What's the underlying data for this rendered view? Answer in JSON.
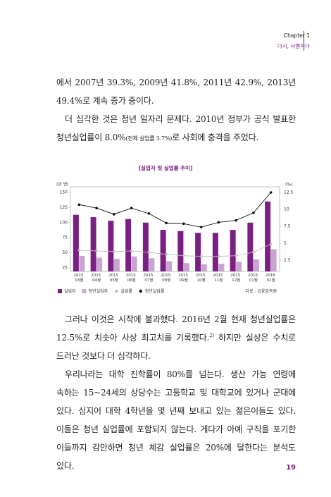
{
  "header": {
    "chapter": "Chapter 1",
    "title": "다시, 사명이다"
  },
  "paragraphs": [
    [
      "에서 2007년 39.3%, 2009년 41.8%, 2011년 42.9%, 2013년 49.4%로 계속 증가 중이다."
    ],
    [
      "더 심각한 것은 청년 일자리 문제다. 2010년 정부가 공식 발표한 청년실업률이 8.0%",
      "(전체 실업률 3.7%)",
      "로 사회에 충격을 주었다."
    ],
    [
      "그러나 이것은 시작에 불과했다. 2016년 2월 현재 청년실업률은 12.5%로 치솟아 사상 최고치를 기록했다.",
      "2)",
      " 하지만 실상은 수치로 드러난 것보다 더 심각하다."
    ],
    [
      "우리나라는 대학 진학률이 80%를 넘는다. 생산 가능 연령에 속하는 15~24세의 상당수는 고등학교 및 대학교에 있거나 군대에 있다. 심지어 대학 4학년을 몇 년째 보내고 있는 젊은이들도 있다. 이들은 청년 실업률에 포함되지 않는다. 게다가 아예 구직을 포기한 이들까지 감안하면 청년 체감 실업률은 20%에 달한다는 분석도 있다."
    ]
  ],
  "chart_data": {
    "type": "bar-line",
    "title": "[실업자 및 실업률 추이]",
    "y_label": "(만 명)",
    "y2_label": "(%)",
    "source": "자료 : 금융감독원",
    "categories": [
      "2015 03월",
      "2015 04월",
      "2015 05월",
      "2015 06월",
      "2015 07월",
      "2015 08월",
      "2015 09월",
      "2015 10월",
      "2015 11월",
      "2015 12월",
      "2016 01월",
      "2016 02월"
    ],
    "ylim": [
      25,
      150
    ],
    "yticks": [
      25,
      50,
      75,
      100,
      125,
      150
    ],
    "y2lim": [
      1.4,
      12.5
    ],
    "y2ticks": [
      2.5,
      5,
      7.5,
      10,
      12.5
    ],
    "series": [
      {
        "name": "실업자",
        "kind": "bar",
        "color": "#7b1f82",
        "values": [
          113,
          109,
          103,
          106,
          100,
          88,
          86,
          83,
          83,
          88,
          100,
          135
        ]
      },
      {
        "name": "청년실업자",
        "kind": "bar",
        "color": "#c9a3d1",
        "values": [
          45,
          42,
          40,
          44,
          41,
          36,
          33,
          31,
          32,
          35,
          39,
          56
        ]
      },
      {
        "name": "실업률",
        "kind": "line",
        "axis": "y2",
        "color": "#bdbdbd",
        "values": [
          4.0,
          3.9,
          3.8,
          3.9,
          3.7,
          3.4,
          3.2,
          3.1,
          3.1,
          3.2,
          3.7,
          4.9
        ]
      },
      {
        "name": "청년실업률",
        "kind": "line",
        "axis": "y2",
        "color": "#111111",
        "values": [
          10.7,
          10.2,
          9.3,
          10.2,
          9.4,
          8.0,
          7.9,
          7.4,
          8.1,
          8.4,
          9.5,
          12.5
        ]
      }
    ]
  },
  "page_number": "19"
}
